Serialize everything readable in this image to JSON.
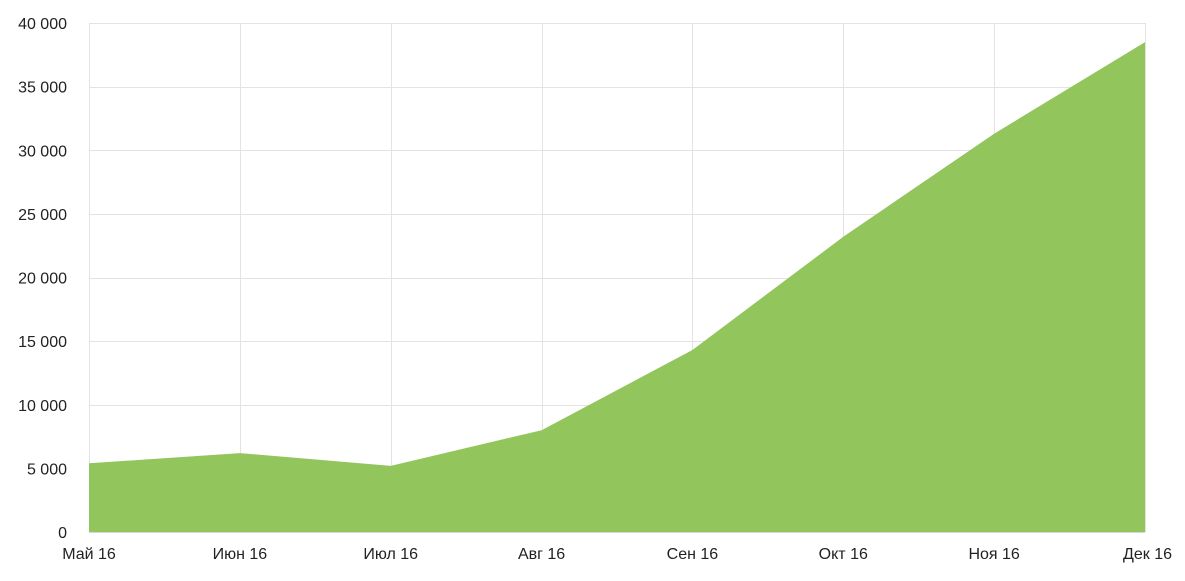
{
  "chart_data": {
    "type": "area",
    "title": "",
    "xlabel": "",
    "ylabel": "",
    "categories": [
      "Май 16",
      "Июн 16",
      "Июл 16",
      "Авг 16",
      "Сен 16",
      "Окт 16",
      "Ноя 16",
      "Дек 16"
    ],
    "series": [
      {
        "values": [
          5400,
          6200,
          5200,
          8000,
          14300,
          23200,
          31300,
          38500
        ],
        "color": "#92c55c"
      }
    ],
    "ylim": [
      0,
      40000
    ],
    "y_ticks": [
      0,
      5000,
      10000,
      15000,
      20000,
      25000,
      30000,
      35000,
      40000
    ],
    "y_tick_labels": [
      "0",
      "5 000",
      "10 000",
      "15 000",
      "20 000",
      "25 000",
      "30 000",
      "35 000",
      "40 000"
    ],
    "grid": true,
    "legend": "none",
    "colors": {
      "area": "#92c55c",
      "grid": "#e3e3e3",
      "text": "#222222"
    }
  }
}
